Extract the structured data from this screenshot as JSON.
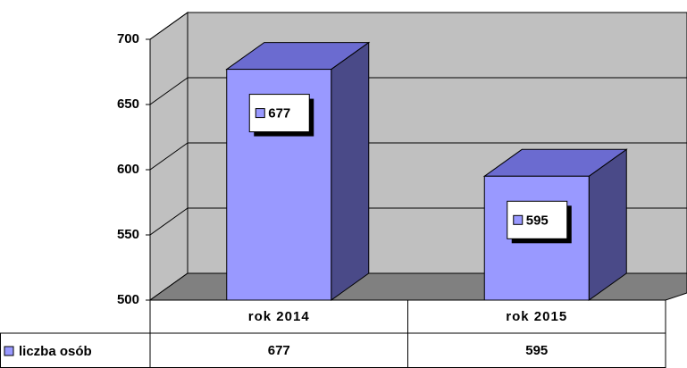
{
  "chart_data": {
    "type": "bar3d",
    "categories": [
      "rok 2014",
      "rok 2015"
    ],
    "series": [
      {
        "name": "liczba osób",
        "color": "#9999ff",
        "values": [
          677,
          595
        ]
      }
    ],
    "ylim": [
      500,
      700
    ],
    "yticks": [
      500,
      550,
      600,
      650,
      700
    ],
    "grid": true,
    "data_table": true
  }
}
